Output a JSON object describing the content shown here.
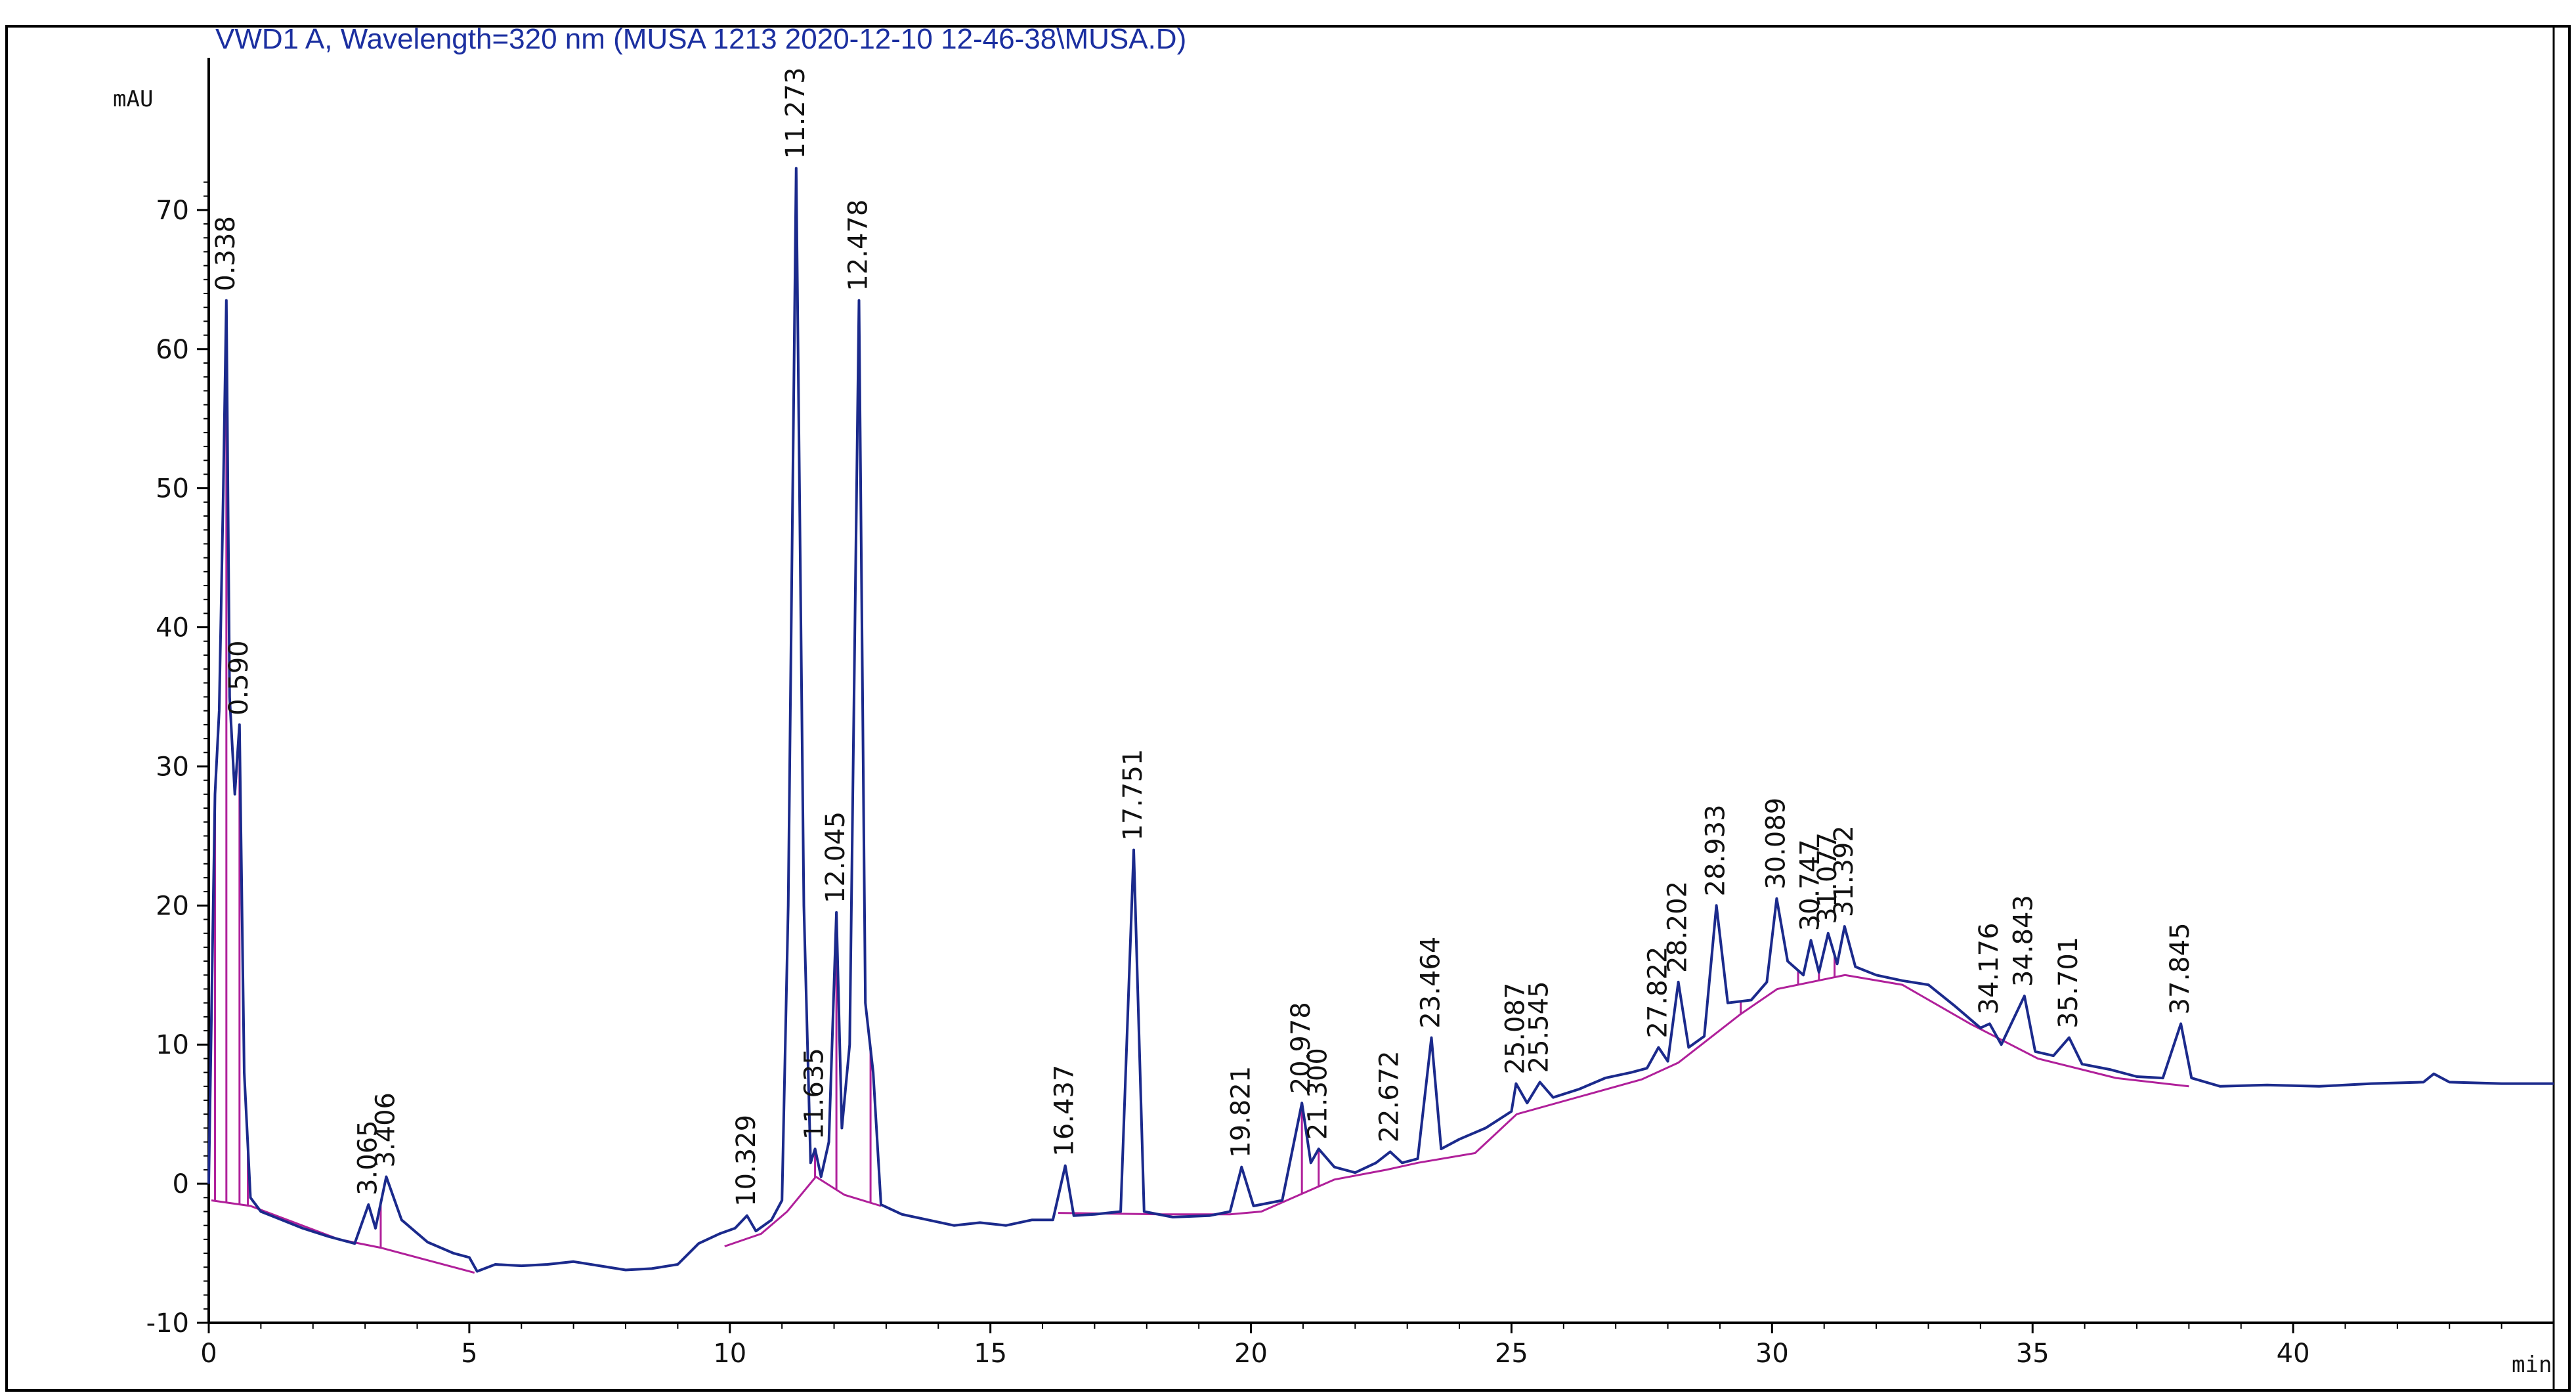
{
  "chart_data": {
    "type": "line",
    "title": "VWD1 A, Wavelength=320 nm (MUSA 1213 2020-12-10 12-46-38\\MUSA.D)",
    "xlabel": "min",
    "ylabel": "mAU",
    "xlim": [
      0,
      45
    ],
    "ylim": [
      -10,
      80
    ],
    "x_ticks": [
      0,
      5,
      10,
      15,
      20,
      25,
      30,
      35,
      40
    ],
    "y_ticks": [
      -10,
      0,
      10,
      20,
      30,
      40,
      50,
      60,
      70
    ],
    "colors": {
      "trace": "#1b2a8c",
      "baseline": "#b0209a",
      "axis": "#000000",
      "title": "#1b2fa0"
    },
    "peaks": [
      {
        "label": "0.338",
        "rt": 0.338,
        "height": 63.5
      },
      {
        "label": "0.590",
        "rt": 0.59,
        "height": 33
      },
      {
        "label": "3.065",
        "rt": 3.065,
        "height": -1.5
      },
      {
        "label": "3.406",
        "rt": 3.406,
        "height": 0.5
      },
      {
        "label": "10.329",
        "rt": 10.329,
        "height": -2.3
      },
      {
        "label": "11.273",
        "rt": 11.273,
        "height": 73
      },
      {
        "label": "11.635",
        "rt": 11.635,
        "height": 2.5
      },
      {
        "label": "12.045",
        "rt": 12.045,
        "height": 19.5
      },
      {
        "label": "12.478",
        "rt": 12.478,
        "height": 63.5
      },
      {
        "label": "16.437",
        "rt": 16.437,
        "height": 1.3
      },
      {
        "label": "17.751",
        "rt": 17.751,
        "height": 24
      },
      {
        "label": "19.821",
        "rt": 19.821,
        "height": 1.2
      },
      {
        "label": "20.978",
        "rt": 20.978,
        "height": 5.8
      },
      {
        "label": "21.300",
        "rt": 21.3,
        "height": 2.5
      },
      {
        "label": "22.672",
        "rt": 22.672,
        "height": 2.3
      },
      {
        "label": "23.464",
        "rt": 23.464,
        "height": 10.5
      },
      {
        "label": "25.087",
        "rt": 25.087,
        "height": 7.2
      },
      {
        "label": "25.545",
        "rt": 25.545,
        "height": 7.3
      },
      {
        "label": "27.822",
        "rt": 27.822,
        "height": 9.8
      },
      {
        "label": "28.202",
        "rt": 28.202,
        "height": 14.5
      },
      {
        "label": "28.933",
        "rt": 28.933,
        "height": 20
      },
      {
        "label": "30.089",
        "rt": 30.089,
        "height": 20.5
      },
      {
        "label": "30.747",
        "rt": 30.747,
        "height": 17.5
      },
      {
        "label": "31.077",
        "rt": 31.077,
        "height": 18
      },
      {
        "label": "31.392",
        "rt": 31.392,
        "height": 18.5
      },
      {
        "label": "34.176",
        "rt": 34.176,
        "height": 11.5
      },
      {
        "label": "34.843",
        "rt": 34.843,
        "height": 13.5
      },
      {
        "label": "35.701",
        "rt": 35.701,
        "height": 10.5
      },
      {
        "label": "37.845",
        "rt": 37.845,
        "height": 11.5
      }
    ],
    "trace_points": [
      [
        0.0,
        0
      ],
      [
        0.12,
        28
      ],
      [
        0.2,
        34
      ],
      [
        0.28,
        50
      ],
      [
        0.338,
        63.5
      ],
      [
        0.4,
        35
      ],
      [
        0.5,
        28
      ],
      [
        0.59,
        33
      ],
      [
        0.68,
        8
      ],
      [
        0.8,
        -1
      ],
      [
        1.0,
        -2
      ],
      [
        1.4,
        -2.6
      ],
      [
        1.8,
        -3.2
      ],
      [
        2.3,
        -3.8
      ],
      [
        2.8,
        -4.3
      ],
      [
        3.065,
        -1.5
      ],
      [
        3.2,
        -3.2
      ],
      [
        3.406,
        0.5
      ],
      [
        3.7,
        -2.6
      ],
      [
        4.2,
        -4.2
      ],
      [
        4.7,
        -5.0
      ],
      [
        5.0,
        -5.3
      ],
      [
        5.15,
        -6.3
      ],
      [
        5.5,
        -5.8
      ],
      [
        6.0,
        -5.9
      ],
      [
        6.5,
        -5.8
      ],
      [
        7.0,
        -5.6
      ],
      [
        7.5,
        -5.9
      ],
      [
        8.0,
        -6.2
      ],
      [
        8.5,
        -6.1
      ],
      [
        9.0,
        -5.8
      ],
      [
        9.4,
        -4.3
      ],
      [
        9.8,
        -3.6
      ],
      [
        10.1,
        -3.2
      ],
      [
        10.329,
        -2.3
      ],
      [
        10.5,
        -3.4
      ],
      [
        10.8,
        -2.6
      ],
      [
        11.0,
        -1.2
      ],
      [
        11.12,
        20
      ],
      [
        11.273,
        73
      ],
      [
        11.42,
        20
      ],
      [
        11.55,
        1.5
      ],
      [
        11.635,
        2.5
      ],
      [
        11.75,
        0.5
      ],
      [
        11.9,
        3
      ],
      [
        12.045,
        19.5
      ],
      [
        12.15,
        4
      ],
      [
        12.3,
        10
      ],
      [
        12.478,
        63.5
      ],
      [
        12.6,
        13
      ],
      [
        12.75,
        8
      ],
      [
        12.9,
        -1.5
      ],
      [
        13.3,
        -2.2
      ],
      [
        13.8,
        -2.6
      ],
      [
        14.3,
        -3.0
      ],
      [
        14.8,
        -2.8
      ],
      [
        15.3,
        -3.0
      ],
      [
        15.8,
        -2.6
      ],
      [
        16.2,
        -2.6
      ],
      [
        16.437,
        1.3
      ],
      [
        16.6,
        -2.3
      ],
      [
        17.0,
        -2.2
      ],
      [
        17.5,
        -2.0
      ],
      [
        17.751,
        24
      ],
      [
        17.95,
        -2.0
      ],
      [
        18.5,
        -2.4
      ],
      [
        19.2,
        -2.3
      ],
      [
        19.6,
        -2.0
      ],
      [
        19.821,
        1.2
      ],
      [
        20.05,
        -1.6
      ],
      [
        20.6,
        -1.2
      ],
      [
        20.978,
        5.8
      ],
      [
        21.15,
        1.5
      ],
      [
        21.3,
        2.5
      ],
      [
        21.6,
        1.2
      ],
      [
        22.0,
        0.8
      ],
      [
        22.4,
        1.5
      ],
      [
        22.672,
        2.3
      ],
      [
        22.9,
        1.5
      ],
      [
        23.2,
        1.8
      ],
      [
        23.464,
        10.5
      ],
      [
        23.65,
        2.5
      ],
      [
        24.0,
        3.2
      ],
      [
        24.5,
        4.0
      ],
      [
        25.0,
        5.2
      ],
      [
        25.087,
        7.2
      ],
      [
        25.3,
        5.8
      ],
      [
        25.545,
        7.3
      ],
      [
        25.8,
        6.2
      ],
      [
        26.3,
        6.8
      ],
      [
        26.8,
        7.6
      ],
      [
        27.3,
        8.0
      ],
      [
        27.6,
        8.3
      ],
      [
        27.822,
        9.8
      ],
      [
        28.0,
        8.8
      ],
      [
        28.202,
        14.5
      ],
      [
        28.4,
        9.8
      ],
      [
        28.7,
        10.6
      ],
      [
        28.933,
        20
      ],
      [
        29.15,
        13
      ],
      [
        29.6,
        13.2
      ],
      [
        29.9,
        14.5
      ],
      [
        30.089,
        20.5
      ],
      [
        30.3,
        16
      ],
      [
        30.6,
        15
      ],
      [
        30.747,
        17.5
      ],
      [
        30.9,
        15.2
      ],
      [
        31.077,
        18
      ],
      [
        31.25,
        15.8
      ],
      [
        31.392,
        18.5
      ],
      [
        31.6,
        15.6
      ],
      [
        32.0,
        15.0
      ],
      [
        32.5,
        14.6
      ],
      [
        33.0,
        14.3
      ],
      [
        33.5,
        12.8
      ],
      [
        34.0,
        11.2
      ],
      [
        34.176,
        11.5
      ],
      [
        34.4,
        10.0
      ],
      [
        34.843,
        13.5
      ],
      [
        35.05,
        9.5
      ],
      [
        35.4,
        9.2
      ],
      [
        35.701,
        10.5
      ],
      [
        35.95,
        8.6
      ],
      [
        36.5,
        8.2
      ],
      [
        37.0,
        7.7
      ],
      [
        37.5,
        7.6
      ],
      [
        37.845,
        11.5
      ],
      [
        38.05,
        7.6
      ],
      [
        38.6,
        7.0
      ],
      [
        39.5,
        7.1
      ],
      [
        40.5,
        7.0
      ],
      [
        41.5,
        7.2
      ],
      [
        42.5,
        7.3
      ],
      [
        42.7,
        7.9
      ],
      [
        43.0,
        7.3
      ],
      [
        44.0,
        7.2
      ],
      [
        45.0,
        7.2
      ]
    ],
    "baselines": [
      [
        [
          0.05,
          -1.2
        ],
        [
          0.8,
          -1.6
        ],
        [
          2.5,
          -4.0
        ],
        [
          3.3,
          -4.6
        ],
        [
          5.1,
          -6.4
        ]
      ],
      [
        [
          9.9,
          -4.5
        ],
        [
          10.6,
          -3.6
        ],
        [
          11.1,
          -2.0
        ],
        [
          11.65,
          0.5
        ],
        [
          12.2,
          -0.8
        ],
        [
          12.9,
          -1.6
        ]
      ],
      [
        [
          16.3,
          -2.1
        ],
        [
          18.3,
          -2.2
        ],
        [
          19.6,
          -2.2
        ],
        [
          20.2,
          -2.0
        ],
        [
          21.6,
          0.3
        ],
        [
          22.6,
          1.0
        ],
        [
          23.2,
          1.5
        ],
        [
          24.3,
          2.2
        ],
        [
          25.1,
          5.0
        ],
        [
          27.5,
          7.5
        ],
        [
          28.2,
          8.7
        ],
        [
          29.4,
          12.2
        ],
        [
          30.1,
          14.0
        ],
        [
          31.4,
          15.0
        ],
        [
          32.5,
          14.3
        ],
        [
          33.8,
          11.5
        ],
        [
          35.1,
          9.0
        ],
        [
          36.6,
          7.6
        ],
        [
          38.0,
          7.0
        ]
      ]
    ],
    "drop_lines": [
      0.12,
      0.338,
      0.59,
      0.75,
      3.3,
      11.635,
      12.045,
      12.7,
      20.978,
      21.3,
      29.4,
      30.5,
      30.9,
      31.2
    ]
  }
}
